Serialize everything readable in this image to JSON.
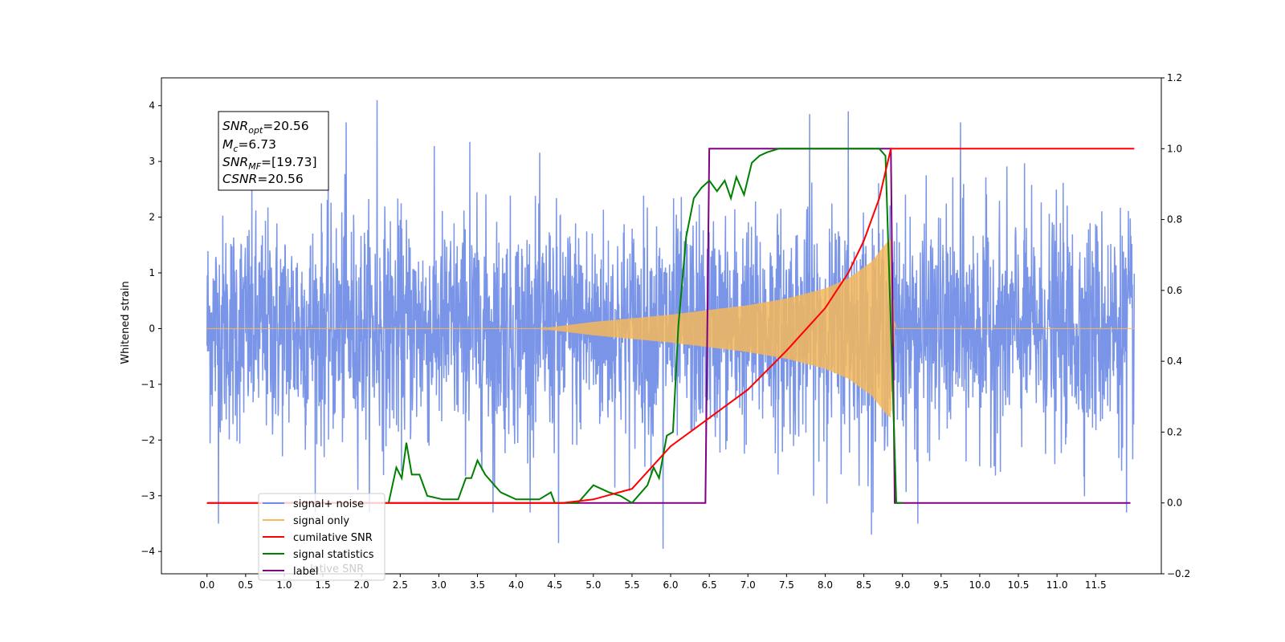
{
  "chart_data": {
    "type": "line",
    "title": "",
    "xlabel": "",
    "ylabel": "Whitened strain",
    "ylim": [
      -4.4,
      4.5
    ],
    "y2lim": [
      -0.2,
      1.2
    ],
    "xlim": [
      -0.59,
      12.35
    ],
    "x_ticks": [
      "0.0",
      "0.5",
      "1.0",
      "1.5",
      "2.0",
      "2.5",
      "3.0",
      "3.5",
      "4.0",
      "4.5",
      "5.0",
      "5.5",
      "6.0",
      "6.5",
      "7.0",
      "7.5",
      "8.0",
      "8.5",
      "9.0",
      "9.5",
      "10.0",
      "10.5",
      "11.0",
      "11.5"
    ],
    "y_ticks": [
      4,
      3,
      2,
      1,
      0,
      -1,
      -2,
      -3,
      -4
    ],
    "y2_ticks": [
      "1.2",
      "1.0",
      "0.8",
      "0.6",
      "0.4",
      "0.2",
      "0.0",
      "−0.2"
    ],
    "grid": false,
    "legend_placement": "lower-left",
    "stats_box": {
      "lines": [
        {
          "name": "SNR",
          "sub": "opt",
          "value": "=20.56"
        },
        {
          "name": "M",
          "sub": "c",
          "value": "=6.73"
        },
        {
          "name": "SNR",
          "sub": "MF",
          "value": "=[19.73]"
        },
        {
          "name": "CSNR",
          "sub": "",
          "value": "=20.56"
        }
      ]
    },
    "legend": [
      {
        "label": "signal+ noise",
        "color": "#6f8ce6"
      },
      {
        "label": "signal only",
        "color": "#f5b75a"
      },
      {
        "label": "cumilative SNR",
        "color": "#ff0000"
      },
      {
        "label": "signal statistics",
        "color": "#008000"
      },
      {
        "label": "label",
        "color": "#800080"
      }
    ],
    "legend_ghost_text": "lative SNR",
    "series": [
      {
        "name": "signal+ noise",
        "axis": "left",
        "color": "#6f8ce6",
        "description": "Gaussian-like noise, std about 1, spanning x 0 to 12",
        "x_range": [
          0,
          12
        ],
        "std": 1.0,
        "spikes": [
          [
            2.2,
            4.1
          ],
          [
            1.8,
            3.7
          ],
          [
            8.3,
            3.9
          ],
          [
            7.8,
            3.85
          ],
          [
            9.75,
            3.7
          ],
          [
            3.4,
            3.35
          ],
          [
            5.9,
            -3.95
          ],
          [
            4.55,
            -3.85
          ],
          [
            0.15,
            -3.5
          ],
          [
            8.6,
            -3.7
          ],
          [
            9.2,
            -3.5
          ],
          [
            11.9,
            -3.3
          ],
          [
            3.7,
            -3.3
          ]
        ]
      },
      {
        "name": "signal only",
        "axis": "left",
        "color": "#f5b75a",
        "description": "chirp whose amplitude grows from 0 near x 4.5 to about 1.6 at x 8.85, then drops to 0",
        "envelope": [
          [
            4.3,
            0.0
          ],
          [
            5.0,
            0.12
          ],
          [
            6.0,
            0.25
          ],
          [
            7.0,
            0.42
          ],
          [
            7.5,
            0.54
          ],
          [
            8.0,
            0.72
          ],
          [
            8.3,
            0.9
          ],
          [
            8.6,
            1.2
          ],
          [
            8.8,
            1.55
          ],
          [
            8.85,
            1.6
          ],
          [
            8.9,
            0.0
          ]
        ]
      },
      {
        "name": "cumilative SNR",
        "axis": "right",
        "color": "#ff0000",
        "points": [
          [
            0.0,
            0.0
          ],
          [
            4.6,
            0.0
          ],
          [
            5.0,
            0.01
          ],
          [
            5.5,
            0.04
          ],
          [
            6.0,
            0.16
          ],
          [
            6.5,
            0.24
          ],
          [
            7.0,
            0.32
          ],
          [
            7.5,
            0.43
          ],
          [
            8.0,
            0.55
          ],
          [
            8.3,
            0.65
          ],
          [
            8.5,
            0.74
          ],
          [
            8.7,
            0.86
          ],
          [
            8.85,
            1.0
          ],
          [
            12.0,
            1.0
          ]
        ]
      },
      {
        "name": "signal statistics",
        "axis": "right",
        "color": "#008000",
        "points": [
          [
            2.35,
            0.0
          ],
          [
            2.45,
            0.1
          ],
          [
            2.52,
            0.07
          ],
          [
            2.58,
            0.17
          ],
          [
            2.65,
            0.08
          ],
          [
            2.75,
            0.08
          ],
          [
            2.85,
            0.02
          ],
          [
            3.05,
            0.01
          ],
          [
            3.25,
            0.01
          ],
          [
            3.35,
            0.07
          ],
          [
            3.42,
            0.07
          ],
          [
            3.5,
            0.12
          ],
          [
            3.6,
            0.08
          ],
          [
            3.8,
            0.03
          ],
          [
            4.0,
            0.01
          ],
          [
            4.3,
            0.01
          ],
          [
            4.45,
            0.03
          ],
          [
            4.5,
            0.0
          ],
          [
            4.8,
            0.0
          ],
          [
            5.0,
            0.05
          ],
          [
            5.2,
            0.03
          ],
          [
            5.35,
            0.02
          ],
          [
            5.5,
            0.0
          ],
          [
            5.7,
            0.05
          ],
          [
            5.78,
            0.1
          ],
          [
            5.85,
            0.07
          ],
          [
            5.95,
            0.19
          ],
          [
            6.03,
            0.2
          ],
          [
            6.1,
            0.5
          ],
          [
            6.2,
            0.75
          ],
          [
            6.3,
            0.86
          ],
          [
            6.4,
            0.89
          ],
          [
            6.5,
            0.91
          ],
          [
            6.6,
            0.88
          ],
          [
            6.7,
            0.91
          ],
          [
            6.78,
            0.86
          ],
          [
            6.85,
            0.92
          ],
          [
            6.95,
            0.87
          ],
          [
            7.05,
            0.96
          ],
          [
            7.15,
            0.98
          ],
          [
            7.25,
            0.99
          ],
          [
            7.4,
            1.0
          ],
          [
            8.7,
            1.0
          ],
          [
            8.78,
            0.98
          ],
          [
            8.85,
            0.5
          ],
          [
            8.92,
            0.0
          ],
          [
            9.0,
            0.0
          ]
        ]
      },
      {
        "name": "label",
        "axis": "right",
        "color": "#800080",
        "points": [
          [
            0.0,
            0.0
          ],
          [
            6.45,
            0.0
          ],
          [
            6.5,
            1.0
          ],
          [
            8.85,
            1.0
          ],
          [
            8.9,
            0.0
          ],
          [
            11.95,
            0.0
          ]
        ]
      }
    ]
  }
}
